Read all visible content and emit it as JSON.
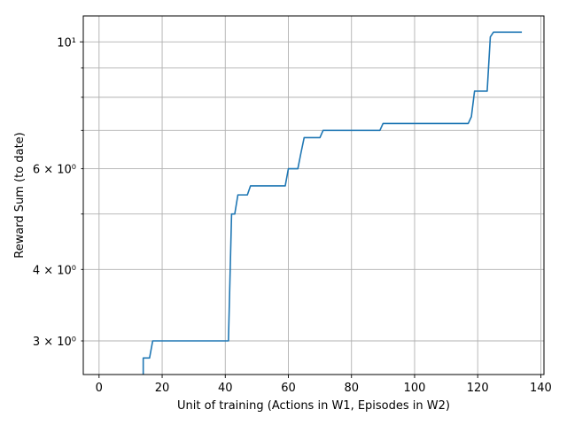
{
  "chart_data": {
    "type": "line",
    "title": "",
    "xlabel": "Unit of training (Actions in W1, Episodes in W2)",
    "ylabel": "Reward Sum (to date)",
    "xlim": [
      -5,
      141
    ],
    "ylim": [
      2.62,
      11.1
    ],
    "yscale": "log",
    "grid": true,
    "x_ticks": [
      0,
      20,
      40,
      60,
      80,
      100,
      120,
      140
    ],
    "x_tick_labels": [
      "0",
      "20",
      "40",
      "60",
      "80",
      "100",
      "120",
      "140"
    ],
    "y_major_ticks": [
      10
    ],
    "y_major_tick_labels": [
      "10¹"
    ],
    "y_minor_ticks": [
      3,
      4,
      5,
      6,
      7,
      8,
      9
    ],
    "y_minor_tick_labels": [
      "3 × 10⁰",
      "4 × 10⁰",
      "",
      "6 × 10⁰",
      "",
      "",
      ""
    ],
    "series": [
      {
        "color": "#1f77b4",
        "x": [
          14,
          14,
          16,
          17,
          41,
          42,
          43,
          44,
          47,
          48,
          59,
          60,
          63,
          64,
          65,
          70,
          71,
          89,
          90,
          117,
          118,
          119,
          123,
          124,
          125,
          134
        ],
        "y": [
          2.6,
          2.8,
          2.8,
          3.0,
          3.0,
          5.0,
          5.0,
          5.4,
          5.4,
          5.6,
          5.6,
          6.0,
          6.0,
          6.4,
          6.8,
          6.8,
          7.0,
          7.0,
          7.2,
          7.2,
          7.4,
          8.2,
          8.2,
          10.2,
          10.4,
          10.4
        ]
      }
    ]
  }
}
